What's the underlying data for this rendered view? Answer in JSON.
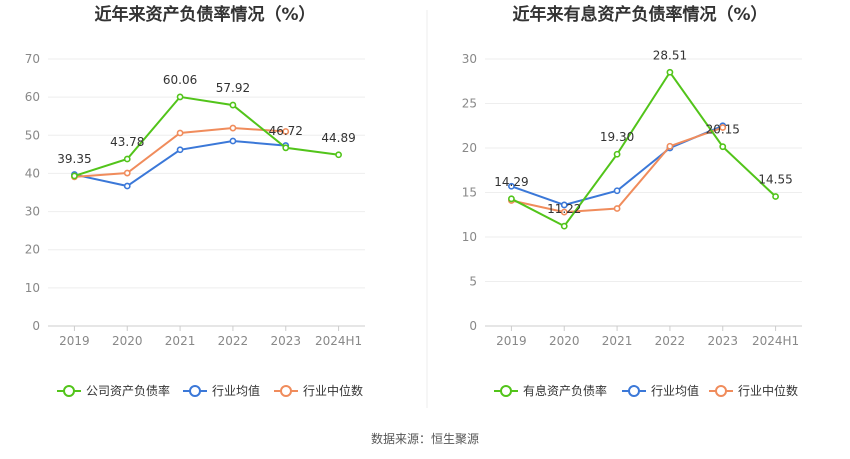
{
  "chart_data": [
    {
      "type": "line",
      "title": "近年来资产负债率情况（%）",
      "categories": [
        "2019",
        "2020",
        "2021",
        "2022",
        "2023",
        "2024H1"
      ],
      "ylim": [
        0,
        70
      ],
      "yticks": [
        0,
        10,
        20,
        30,
        40,
        50,
        60,
        70
      ],
      "grid": true,
      "legend_position": "bottom",
      "series": [
        {
          "name": "公司资产负债率",
          "color": "#52c41a",
          "values": [
            39.35,
            43.78,
            60.06,
            57.92,
            46.72,
            44.89
          ],
          "labels": [
            "39.35",
            "43.78",
            "60.06",
            "57.92",
            "46.72",
            "44.89"
          ]
        },
        {
          "name": "行业均值",
          "color": "#3b78d8",
          "values": [
            39.7,
            36.7,
            46.2,
            48.5,
            47.3,
            null
          ]
        },
        {
          "name": "行业中位数",
          "color": "#f08c5c",
          "values": [
            39.1,
            40.1,
            50.6,
            51.9,
            51.0,
            null
          ]
        }
      ]
    },
    {
      "type": "line",
      "title": "近年来有息资产负债率情况（%）",
      "categories": [
        "2019",
        "2020",
        "2021",
        "2022",
        "2023",
        "2024H1"
      ],
      "ylim": [
        0,
        30
      ],
      "yticks": [
        0,
        5,
        10,
        15,
        20,
        25,
        30
      ],
      "grid": true,
      "legend_position": "bottom",
      "series": [
        {
          "name": "有息资产负债率",
          "color": "#52c41a",
          "values": [
            14.29,
            11.22,
            19.3,
            28.51,
            20.15,
            14.55
          ],
          "labels": [
            "14.29",
            "11.22",
            "19.30",
            "28.51",
            "20.15",
            "14.55"
          ]
        },
        {
          "name": "行业均值",
          "color": "#3b78d8",
          "values": [
            15.7,
            13.6,
            15.2,
            20.0,
            22.5,
            null
          ]
        },
        {
          "name": "行业中位数",
          "color": "#f08c5c",
          "values": [
            14.1,
            12.8,
            13.2,
            20.2,
            22.3,
            null
          ]
        }
      ]
    }
  ],
  "source": "数据来源：恒生聚源"
}
